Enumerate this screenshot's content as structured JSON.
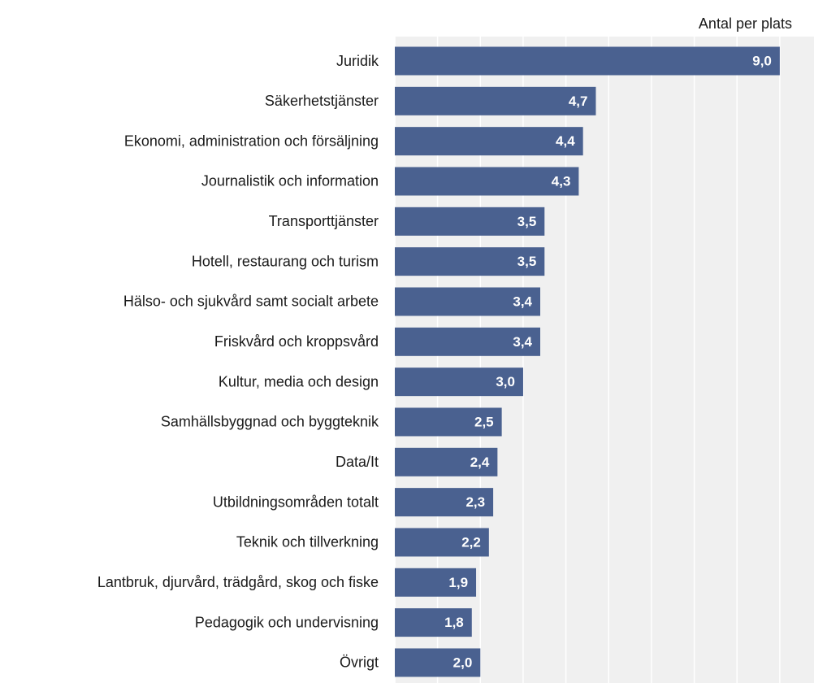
{
  "chart_data": {
    "type": "bar",
    "orientation": "horizontal",
    "axis_label": "Antal per plats",
    "categories": [
      "Juridik",
      "Säkerhetstjänster",
      "Ekonomi, administration och försäljning",
      "Journalistik och information",
      "Transporttjänster",
      "Hotell, restaurang och turism",
      "Hälso- och sjukvård samt socialt arbete",
      "Friskvård och kroppsvård",
      "Kultur, media och design",
      "Samhällsbyggnad och byggteknik",
      "Data/It",
      "Utbildningsområden totalt",
      "Teknik och tillverkning",
      "Lantbruk, djurvård, trädgård, skog och fiske",
      "Pedagogik och undervisning",
      "Övrigt"
    ],
    "values": [
      9.0,
      4.7,
      4.4,
      4.3,
      3.5,
      3.5,
      3.4,
      3.4,
      3.0,
      2.5,
      2.4,
      2.3,
      2.2,
      1.9,
      1.8,
      2.0
    ],
    "value_labels": [
      "9,0",
      "4,7",
      "4,4",
      "4,3",
      "3,5",
      "3,5",
      "3,4",
      "3,4",
      "3,0",
      "2,5",
      "2,4",
      "2,3",
      "2,2",
      "1,9",
      "1,8",
      "2,0"
    ],
    "color": "#4a6190",
    "xlim": [
      0,
      9.8
    ],
    "xticks": [
      0,
      1,
      2,
      3,
      4,
      5,
      6,
      7,
      8,
      9
    ],
    "grid": true
  }
}
